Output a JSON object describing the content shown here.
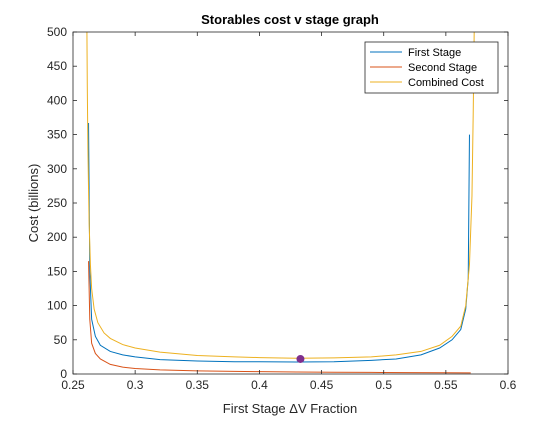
{
  "chart_data": {
    "type": "line",
    "title": "Storables cost v stage graph",
    "xlabel": "First Stage ΔV Fraction",
    "ylabel": "Cost (billions)",
    "xlim": [
      0.25,
      0.6
    ],
    "ylim": [
      0,
      500
    ],
    "xticks": [
      0.25,
      0.3,
      0.35,
      0.4,
      0.45,
      0.5,
      0.55,
      0.6
    ],
    "xtick_labels": [
      "0.25",
      "0.3",
      "0.35",
      "0.4",
      "0.45",
      "0.5",
      "0.55",
      "0.6"
    ],
    "yticks": [
      0,
      50,
      100,
      150,
      200,
      250,
      300,
      350,
      400,
      450,
      500
    ],
    "ytick_labels": [
      "0",
      "50",
      "100",
      "150",
      "200",
      "250",
      "300",
      "350",
      "400",
      "450",
      "500"
    ],
    "grid": false,
    "legend_position": "top-right",
    "series": [
      {
        "name": "First Stage",
        "color": "#0072BD",
        "x": [
          0.2625,
          0.2635,
          0.265,
          0.268,
          0.272,
          0.28,
          0.29,
          0.3,
          0.32,
          0.35,
          0.38,
          0.4,
          0.43,
          0.46,
          0.49,
          0.51,
          0.53,
          0.545,
          0.555,
          0.562,
          0.566,
          0.568,
          0.569
        ],
        "y": [
          367,
          150,
          80,
          55,
          42,
          33,
          28,
          25,
          21,
          19,
          18,
          18,
          17.5,
          18,
          20,
          22,
          28,
          38,
          50,
          65,
          95,
          140,
          350
        ]
      },
      {
        "name": "Second Stage",
        "color": "#D95319",
        "x": [
          0.2625,
          0.2635,
          0.265,
          0.268,
          0.272,
          0.28,
          0.29,
          0.3,
          0.32,
          0.35,
          0.38,
          0.4,
          0.43,
          0.46,
          0.49,
          0.52,
          0.55,
          0.57
        ],
        "y": [
          165,
          80,
          45,
          30,
          22,
          14,
          10,
          8,
          6,
          4.5,
          3.8,
          3.5,
          3,
          2.6,
          2.3,
          2,
          1.8,
          1.6
        ]
      },
      {
        "name": "Combined Cost",
        "color": "#EDB120",
        "x": [
          0.2612,
          0.2615,
          0.262,
          0.2625,
          0.263,
          0.264,
          0.265,
          0.267,
          0.27,
          0.275,
          0.28,
          0.29,
          0.3,
          0.32,
          0.35,
          0.38,
          0.4,
          0.43,
          0.46,
          0.49,
          0.51,
          0.53,
          0.545,
          0.555,
          0.562,
          0.566,
          0.569,
          0.571,
          0.572,
          0.5728
        ],
        "y": [
          500,
          420,
          330,
          270,
          220,
          160,
          125,
          95,
          75,
          60,
          52,
          43,
          38,
          32,
          27,
          25,
          24,
          23,
          23.5,
          25,
          28,
          33,
          42,
          55,
          70,
          100,
          160,
          260,
          380,
          500
        ]
      }
    ],
    "highlight_point": {
      "x": 0.433,
      "y": 22,
      "color": "#7E2F8E"
    }
  }
}
